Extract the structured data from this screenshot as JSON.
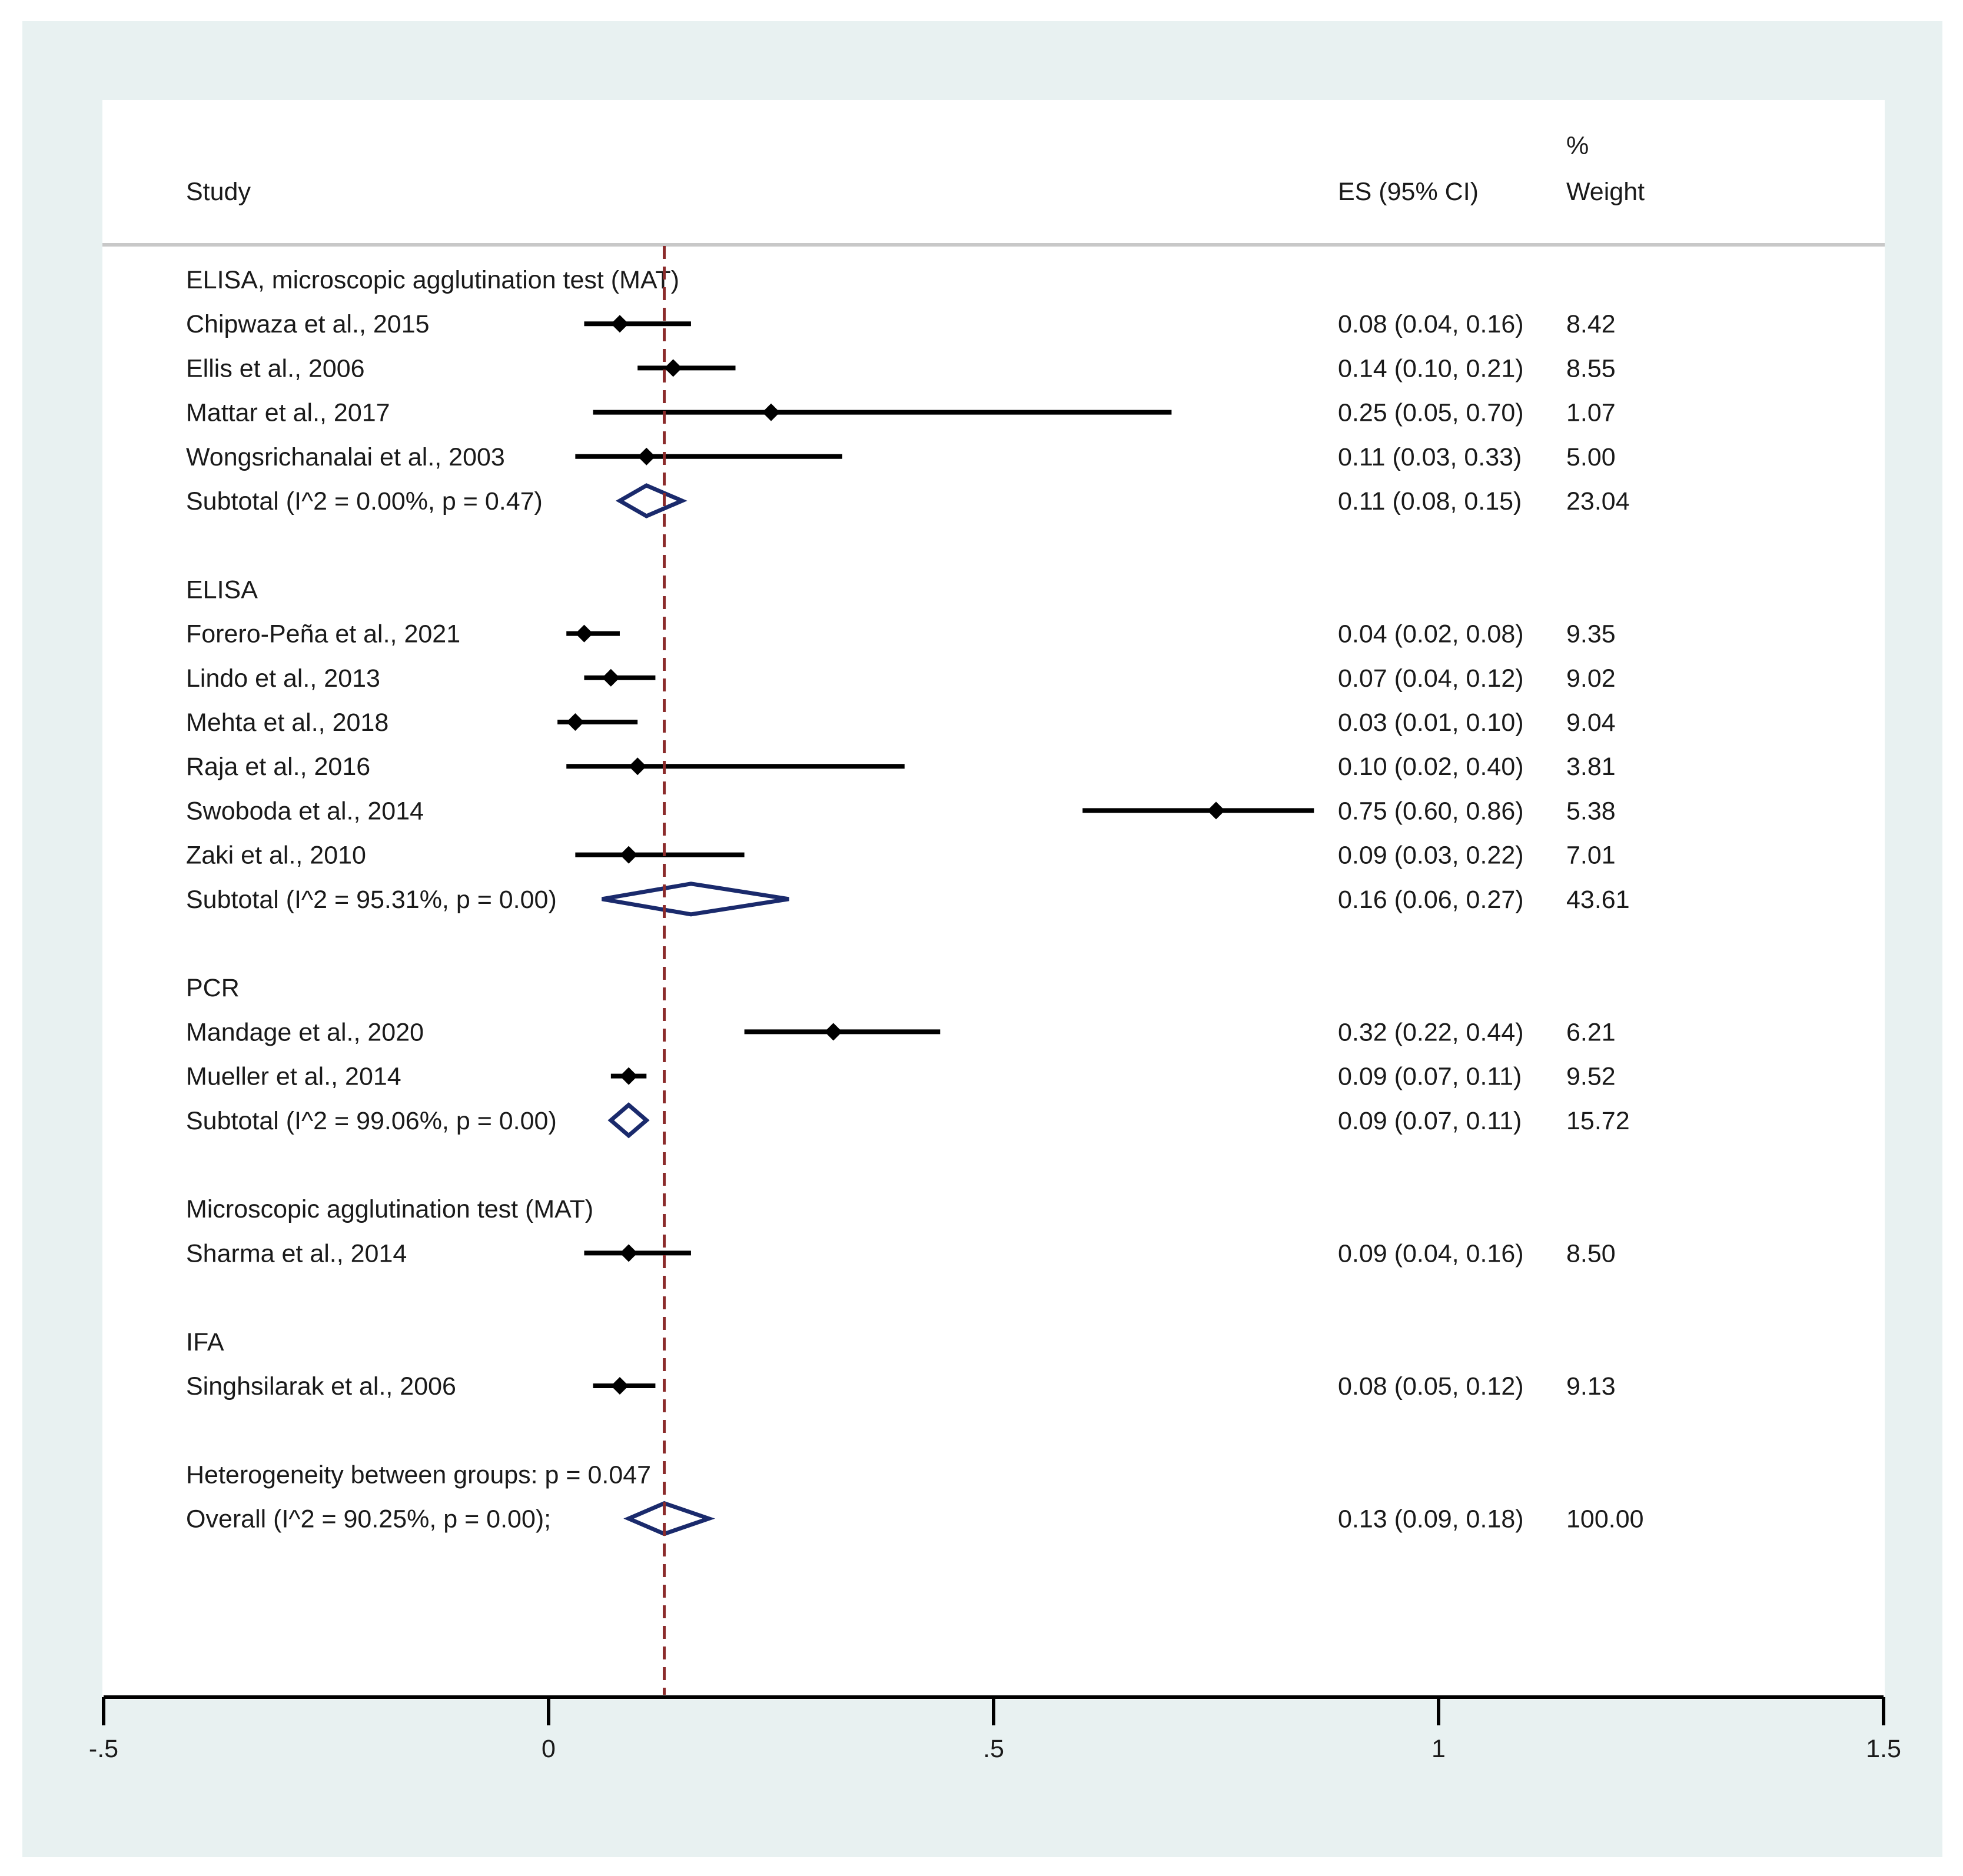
{
  "chart_data": {
    "type": "forest",
    "title": "",
    "headers": {
      "study": "Study",
      "es": "ES (95% CI)",
      "weight_top": "%",
      "weight_bottom": "Weight"
    },
    "xlim": [
      -0.5,
      1.5
    ],
    "x_ticks": [
      {
        "value": -0.5,
        "label": "-.5"
      },
      {
        "value": 0,
        "label": "0"
      },
      {
        "value": 0.5,
        "label": ".5"
      },
      {
        "value": 1,
        "label": "1"
      },
      {
        "value": 1.5,
        "label": "1.5"
      }
    ],
    "reference_line": 0.13,
    "groups": [
      {
        "name": "ELISA, microscopic agglutination test (MAT)",
        "studies": [
          {
            "label": "Chipwaza et al., 2015",
            "es": 0.08,
            "lo": 0.04,
            "hi": 0.16,
            "es_text": "0.08 (0.04, 0.16)",
            "weight": "8.42"
          },
          {
            "label": "Ellis et al., 2006",
            "es": 0.14,
            "lo": 0.1,
            "hi": 0.21,
            "es_text": "0.14 (0.10, 0.21)",
            "weight": "8.55"
          },
          {
            "label": "Mattar et al., 2017",
            "es": 0.25,
            "lo": 0.05,
            "hi": 0.7,
            "es_text": "0.25 (0.05, 0.70)",
            "weight": "1.07"
          },
          {
            "label": "Wongsrichanalai et al., 2003",
            "es": 0.11,
            "lo": 0.03,
            "hi": 0.33,
            "es_text": "0.11 (0.03, 0.33)",
            "weight": "5.00"
          }
        ],
        "subtotal": {
          "label": "Subtotal  (I^2 = 0.00%, p = 0.47)",
          "es": 0.11,
          "lo": 0.08,
          "hi": 0.15,
          "es_text": "0.11 (0.08, 0.15)",
          "weight": "23.04"
        }
      },
      {
        "name": "ELISA",
        "studies": [
          {
            "label": "Forero-Peña et al., 2021",
            "es": 0.04,
            "lo": 0.02,
            "hi": 0.08,
            "es_text": "0.04 (0.02, 0.08)",
            "weight": "9.35"
          },
          {
            "label": "Lindo et al., 2013",
            "es": 0.07,
            "lo": 0.04,
            "hi": 0.12,
            "es_text": "0.07 (0.04, 0.12)",
            "weight": "9.02"
          },
          {
            "label": "Mehta et al., 2018",
            "es": 0.03,
            "lo": 0.01,
            "hi": 0.1,
            "es_text": "0.03 (0.01, 0.10)",
            "weight": "9.04"
          },
          {
            "label": "Raja et al., 2016",
            "es": 0.1,
            "lo": 0.02,
            "hi": 0.4,
            "es_text": "0.10 (0.02, 0.40)",
            "weight": "3.81"
          },
          {
            "label": "Swoboda et al., 2014",
            "es": 0.75,
            "lo": 0.6,
            "hi": 0.86,
            "es_text": "0.75 (0.60, 0.86)",
            "weight": "5.38"
          },
          {
            "label": "Zaki et al., 2010",
            "es": 0.09,
            "lo": 0.03,
            "hi": 0.22,
            "es_text": "0.09 (0.03, 0.22)",
            "weight": "7.01"
          }
        ],
        "subtotal": {
          "label": "Subtotal  (I^2 = 95.31%, p = 0.00)",
          "es": 0.16,
          "lo": 0.06,
          "hi": 0.27,
          "es_text": "0.16 (0.06, 0.27)",
          "weight": "43.61"
        }
      },
      {
        "name": "PCR",
        "studies": [
          {
            "label": "Mandage et al., 2020",
            "es": 0.32,
            "lo": 0.22,
            "hi": 0.44,
            "es_text": "0.32 (0.22, 0.44)",
            "weight": "6.21"
          },
          {
            "label": "Mueller et al., 2014",
            "es": 0.09,
            "lo": 0.07,
            "hi": 0.11,
            "es_text": "0.09 (0.07, 0.11)",
            "weight": "9.52"
          }
        ],
        "subtotal": {
          "label": "Subtotal  (I^2 = 99.06%, p = 0.00)",
          "es": 0.09,
          "lo": 0.07,
          "hi": 0.11,
          "es_text": "0.09 (0.07, 0.11)",
          "weight": "15.72"
        }
      },
      {
        "name": "Microscopic agglutination test (MAT)",
        "studies": [
          {
            "label": "Sharma et al., 2014",
            "es": 0.09,
            "lo": 0.04,
            "hi": 0.16,
            "es_text": "0.09 (0.04, 0.16)",
            "weight": "8.50"
          }
        ],
        "subtotal": null
      },
      {
        "name": "IFA",
        "studies": [
          {
            "label": "Singhsilarak et al., 2006",
            "es": 0.08,
            "lo": 0.05,
            "hi": 0.12,
            "es_text": "0.08 (0.05, 0.12)",
            "weight": "9.13"
          }
        ],
        "subtotal": null
      }
    ],
    "heterogeneity": "Heterogeneity between groups: p = 0.047",
    "overall": {
      "label": "Overall  (I^2 = 90.25%, p = 0.00);",
      "es": 0.13,
      "lo": 0.09,
      "hi": 0.18,
      "es_text": "0.13 (0.09, 0.18)",
      "weight": "100.00"
    }
  },
  "colors": {
    "outer_background": "#e8f1f1",
    "plot_background": "#ffffff",
    "ci_line": "#000000",
    "diamond_outline": "#1a2a6c",
    "reference_line": "#8b2b2b",
    "header_rule": "#c8c8c8",
    "text": "#1a1a1a"
  }
}
